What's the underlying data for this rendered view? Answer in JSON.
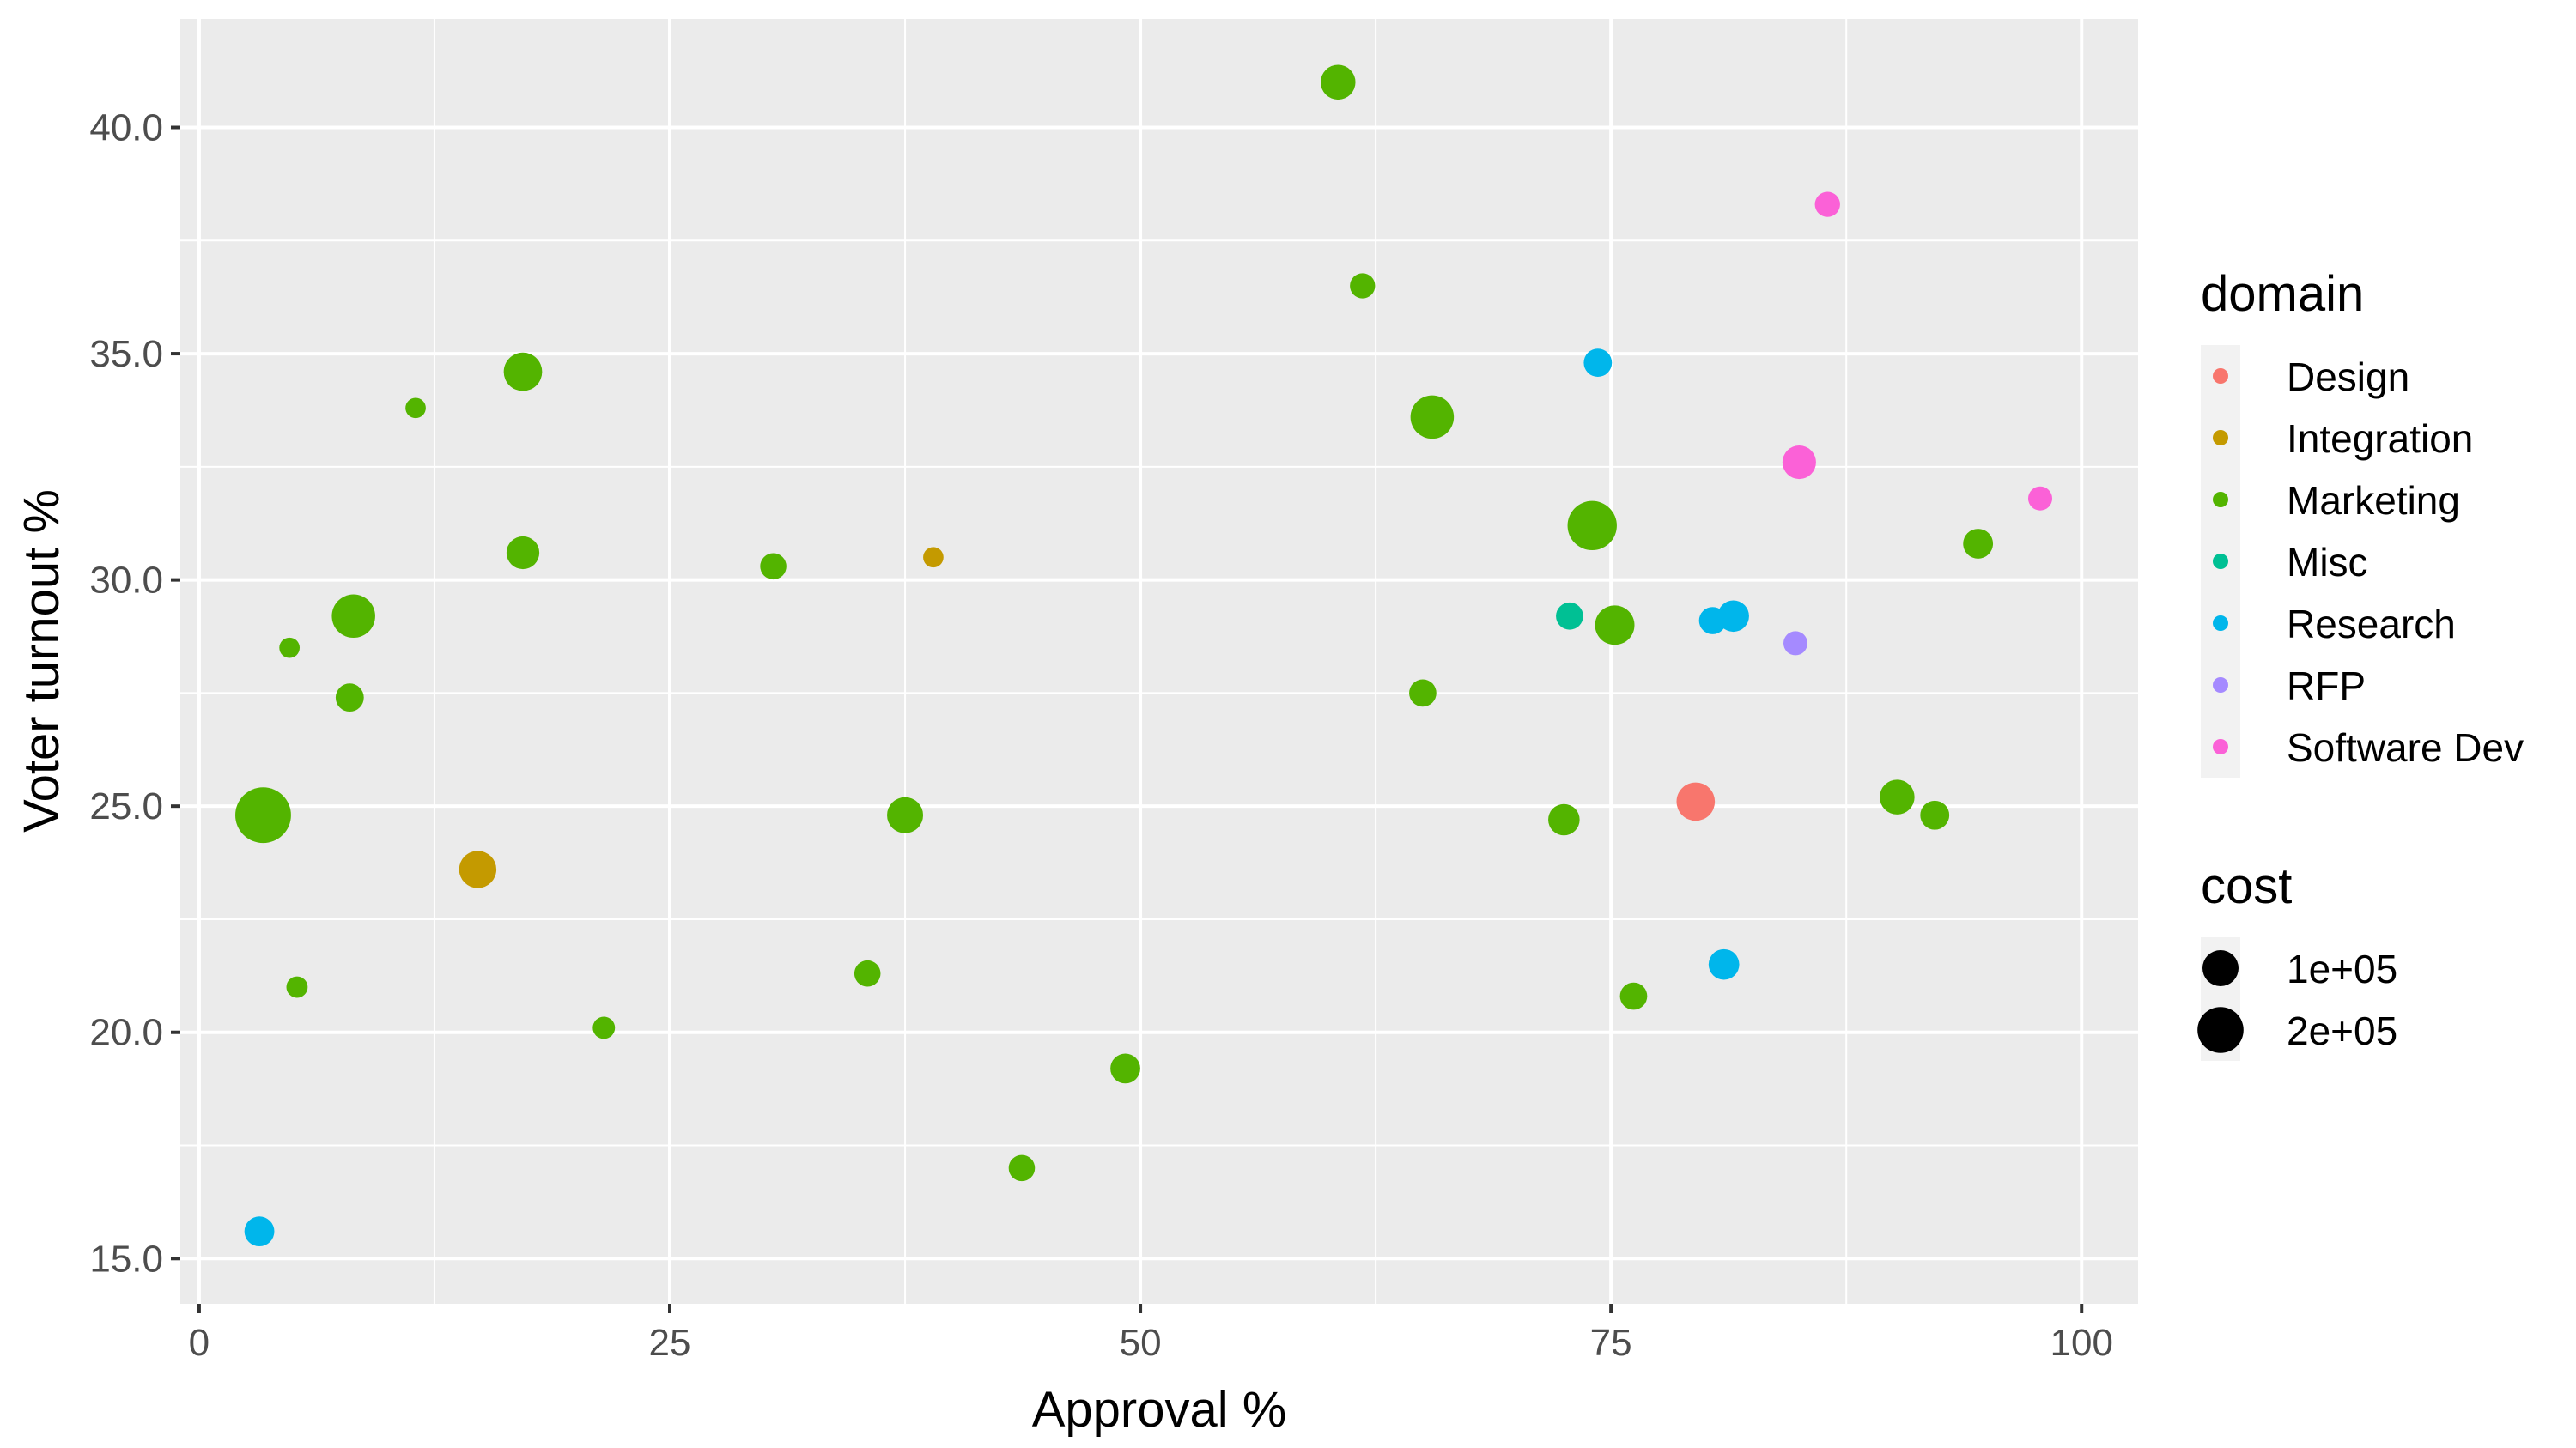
{
  "chart_data": {
    "type": "scatter",
    "title": "",
    "xlabel": "Approval %",
    "ylabel": "Voter turnout %",
    "xlim": [
      -1,
      103
    ],
    "ylim": [
      14,
      42.4
    ],
    "x_ticks": [
      0,
      25,
      50,
      75,
      100
    ],
    "x_tick_labels": [
      "0",
      "25",
      "50",
      "75",
      "100"
    ],
    "y_ticks": [
      15,
      20,
      25,
      30,
      35,
      40
    ],
    "y_tick_labels": [
      "15.0",
      "20.0",
      "25.0",
      "30.0",
      "35.0",
      "40.0"
    ],
    "grid": true,
    "legend_position": "right",
    "color_legend": {
      "title": "domain",
      "entries": [
        {
          "name": "Design",
          "color": "#F8766D"
        },
        {
          "name": "Integration",
          "color": "#C49A00"
        },
        {
          "name": "Marketing",
          "color": "#53B400"
        },
        {
          "name": "Misc",
          "color": "#00C094"
        },
        {
          "name": "Research",
          "color": "#00B6EB"
        },
        {
          "name": "RFP",
          "color": "#A58AFF"
        },
        {
          "name": "Software Dev",
          "color": "#FB61D7"
        }
      ]
    },
    "size_legend": {
      "title": "cost",
      "entries": [
        {
          "label": "1e+05",
          "value": 100000
        },
        {
          "label": "2e+05",
          "value": 200000
        }
      ]
    },
    "points": [
      {
        "x": 60.5,
        "y": 41.0,
        "domain": "Marketing",
        "cost": 90000
      },
      {
        "x": 61.8,
        "y": 36.5,
        "domain": "Marketing",
        "cost": 30000
      },
      {
        "x": 17.2,
        "y": 34.6,
        "domain": "Marketing",
        "cost": 120000
      },
      {
        "x": 11.5,
        "y": 33.8,
        "domain": "Marketing",
        "cost": 12000
      },
      {
        "x": 65.5,
        "y": 33.6,
        "domain": "Marketing",
        "cost": 170000
      },
      {
        "x": 74.0,
        "y": 31.2,
        "domain": "Marketing",
        "cost": 240000
      },
      {
        "x": 94.5,
        "y": 30.8,
        "domain": "Marketing",
        "cost": 55000
      },
      {
        "x": 17.2,
        "y": 30.6,
        "domain": "Marketing",
        "cost": 75000
      },
      {
        "x": 30.5,
        "y": 30.3,
        "domain": "Marketing",
        "cost": 35000
      },
      {
        "x": 8.2,
        "y": 29.2,
        "domain": "Marketing",
        "cost": 170000
      },
      {
        "x": 75.2,
        "y": 29.0,
        "domain": "Marketing",
        "cost": 130000
      },
      {
        "x": 4.8,
        "y": 28.5,
        "domain": "Marketing",
        "cost": 12000
      },
      {
        "x": 8.0,
        "y": 27.4,
        "domain": "Marketing",
        "cost": 45000
      },
      {
        "x": 65.0,
        "y": 27.5,
        "domain": "Marketing",
        "cost": 40000
      },
      {
        "x": 90.2,
        "y": 25.2,
        "domain": "Marketing",
        "cost": 90000
      },
      {
        "x": 3.4,
        "y": 24.8,
        "domain": "Marketing",
        "cost": 330000
      },
      {
        "x": 37.5,
        "y": 24.8,
        "domain": "Marketing",
        "cost": 100000
      },
      {
        "x": 72.5,
        "y": 24.7,
        "domain": "Marketing",
        "cost": 65000
      },
      {
        "x": 92.2,
        "y": 24.8,
        "domain": "Marketing",
        "cost": 50000
      },
      {
        "x": 35.5,
        "y": 21.3,
        "domain": "Marketing",
        "cost": 35000
      },
      {
        "x": 5.2,
        "y": 21.0,
        "domain": "Marketing",
        "cost": 15000
      },
      {
        "x": 76.2,
        "y": 20.8,
        "domain": "Marketing",
        "cost": 40000
      },
      {
        "x": 21.5,
        "y": 20.1,
        "domain": "Marketing",
        "cost": 18000
      },
      {
        "x": 49.2,
        "y": 19.2,
        "domain": "Marketing",
        "cost": 55000
      },
      {
        "x": 43.7,
        "y": 17.0,
        "domain": "Marketing",
        "cost": 35000
      },
      {
        "x": 39.0,
        "y": 30.5,
        "domain": "Integration",
        "cost": 12000
      },
      {
        "x": 14.8,
        "y": 23.6,
        "domain": "Integration",
        "cost": 110000
      },
      {
        "x": 79.5,
        "y": 25.1,
        "domain": "Design",
        "cost": 120000
      },
      {
        "x": 72.8,
        "y": 29.2,
        "domain": "Misc",
        "cost": 40000
      },
      {
        "x": 74.3,
        "y": 34.8,
        "domain": "Research",
        "cost": 45000
      },
      {
        "x": 80.4,
        "y": 29.1,
        "domain": "Research",
        "cost": 40000
      },
      {
        "x": 81.5,
        "y": 29.2,
        "domain": "Research",
        "cost": 65000
      },
      {
        "x": 81.0,
        "y": 21.5,
        "domain": "Research",
        "cost": 60000
      },
      {
        "x": 3.2,
        "y": 15.6,
        "domain": "Research",
        "cost": 55000
      },
      {
        "x": 84.8,
        "y": 28.6,
        "domain": "RFP",
        "cost": 25000
      },
      {
        "x": 86.5,
        "y": 38.3,
        "domain": "Software Dev",
        "cost": 30000
      },
      {
        "x": 85.0,
        "y": 32.6,
        "domain": "Software Dev",
        "cost": 80000
      },
      {
        "x": 97.8,
        "y": 31.8,
        "domain": "Software Dev",
        "cost": 25000
      }
    ]
  }
}
